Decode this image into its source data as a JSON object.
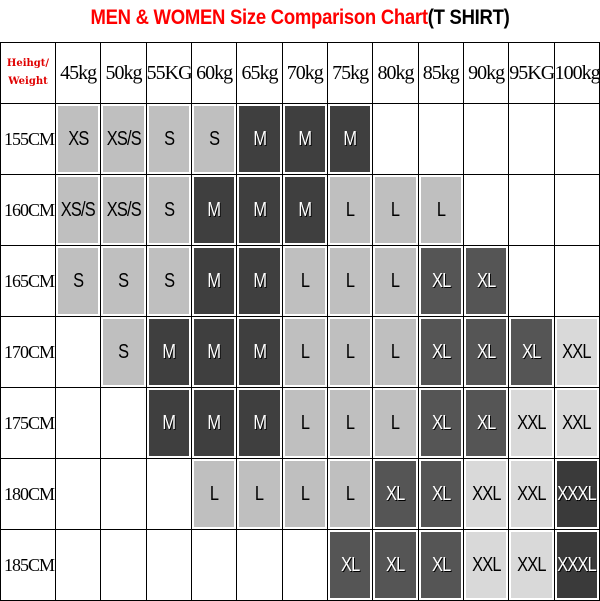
{
  "title": {
    "red": "MEN & WOMEN Size Comparison Chart",
    "black": "(T SHIRT)"
  },
  "corner": {
    "line1": "Heihgt/",
    "line2": "Weight"
  },
  "weights": [
    "45kg",
    "50kg",
    "55KG",
    "60kg",
    "65kg",
    "70kg",
    "75kg",
    "80kg",
    "85kg",
    "90kg",
    "95KG",
    "100kg"
  ],
  "rows": [
    {
      "height": "155CM",
      "sizes": [
        "XS",
        "XS/S",
        "S",
        "S",
        "M",
        "M",
        "M",
        "",
        "",
        "",
        "",
        ""
      ]
    },
    {
      "height": "160CM",
      "sizes": [
        "XS/S",
        "XS/S",
        "S",
        "M",
        "M",
        "M",
        "L",
        "L",
        "L",
        "",
        "",
        ""
      ]
    },
    {
      "height": "165CM",
      "sizes": [
        "S",
        "S",
        "S",
        "M",
        "M",
        "L",
        "L",
        "L",
        "XL",
        "XL",
        "",
        ""
      ]
    },
    {
      "height": "170CM",
      "sizes": [
        "",
        "S",
        "M",
        "M",
        "M",
        "L",
        "L",
        "L",
        "XL",
        "XL",
        "XL",
        "XXL"
      ]
    },
    {
      "height": "175CM",
      "sizes": [
        "",
        "",
        "M",
        "M",
        "M",
        "L",
        "L",
        "L",
        "XL",
        "XL",
        "XXL",
        "XXL"
      ]
    },
    {
      "height": "180CM",
      "sizes": [
        "",
        "",
        "",
        "L",
        "L",
        "L",
        "L",
        "XL",
        "XL",
        "XXL",
        "XXL",
        "XXXL"
      ]
    },
    {
      "height": "185CM",
      "sizes": [
        "",
        "",
        "",
        "",
        "",
        "",
        "XL",
        "XL",
        "XL",
        "XXL",
        "XXL",
        "XXXL"
      ]
    }
  ],
  "size_colors": {
    "XS": "#bfbfbf",
    "XS/S": "#bfbfbf",
    "S": "#bfbfbf",
    "M": "#3f3f3f",
    "L": "#bfbfbf",
    "XL": "#555555",
    "XXL": "#d9d9d9",
    "XXXL": "#3a3a3a"
  },
  "title_color": "#ff0000"
}
